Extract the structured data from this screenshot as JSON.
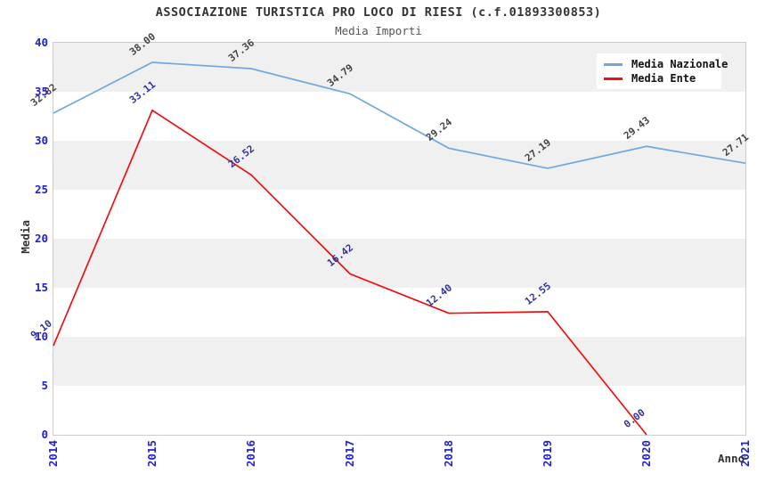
{
  "header": {
    "title": "ASSOCIAZIONE TURISTICA PRO LOCO DI RIESI (c.f.01893300853)",
    "subtitle": "Media Importi"
  },
  "chart_data": {
    "type": "line",
    "x": [
      "2014",
      "2015",
      "2016",
      "2017",
      "2018",
      "2019",
      "2020",
      "2021"
    ],
    "series": [
      {
        "name": "Media Nazionale",
        "color": "#6fa8dc",
        "label_color": "#444444",
        "values": [
          32.82,
          38.0,
          37.36,
          34.79,
          29.24,
          27.19,
          29.43,
          27.71
        ]
      },
      {
        "name": "Media Ente",
        "color": "#ee1111",
        "label_color": "#333399",
        "values": [
          9.1,
          33.11,
          26.52,
          16.42,
          12.4,
          12.55,
          0.0,
          null
        ]
      }
    ],
    "title": "ASSOCIAZIONE TURISTICA PRO LOCO DI RIESI (c.f.01893300853)",
    "subtitle": "Media Importi",
    "xlabel": "Anno",
    "ylabel": "Media",
    "ylim": [
      0,
      40
    ],
    "ytick_step": 5,
    "legend_position": "top-right",
    "grid": "horizontal-bands",
    "band_colors": [
      "#f0f0f0",
      "#ffffff"
    ],
    "tick_label_color": "#2222cc",
    "value_label_decimals": 2
  }
}
